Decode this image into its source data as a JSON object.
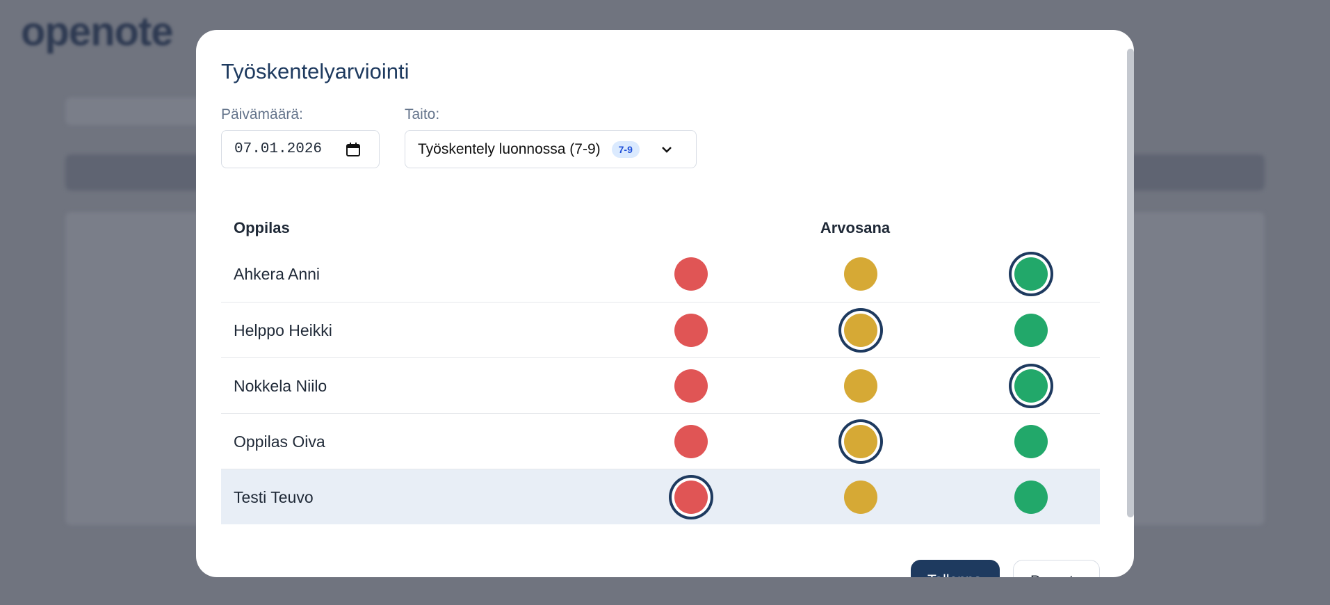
{
  "app": {
    "logo": "openote"
  },
  "modal": {
    "title": "Työskentelyarviointi",
    "date_label": "Päivämäärä:",
    "skill_label": "Taito:",
    "date": "07.01.2026",
    "skill": "Työskentely luonnossa (7-9)",
    "skill_badge": "7-9",
    "table": {
      "headers": [
        "Oppilas",
        "Arvosana"
      ],
      "grade_colors": [
        "#e05555",
        "#d6a935",
        "#22a86a"
      ],
      "rows": [
        {
          "name": "Ahkera Anni",
          "selected": 2
        },
        {
          "name": "Helppo Heikki",
          "selected": 1
        },
        {
          "name": "Nokkela Niilo",
          "selected": 2
        },
        {
          "name": "Oppilas Oiva",
          "selected": 1
        },
        {
          "name": "Testi Teuvo",
          "selected": 0
        }
      ],
      "highlighted_row": 4
    },
    "buttons": [
      "Tallenna",
      "Peruuta"
    ]
  }
}
